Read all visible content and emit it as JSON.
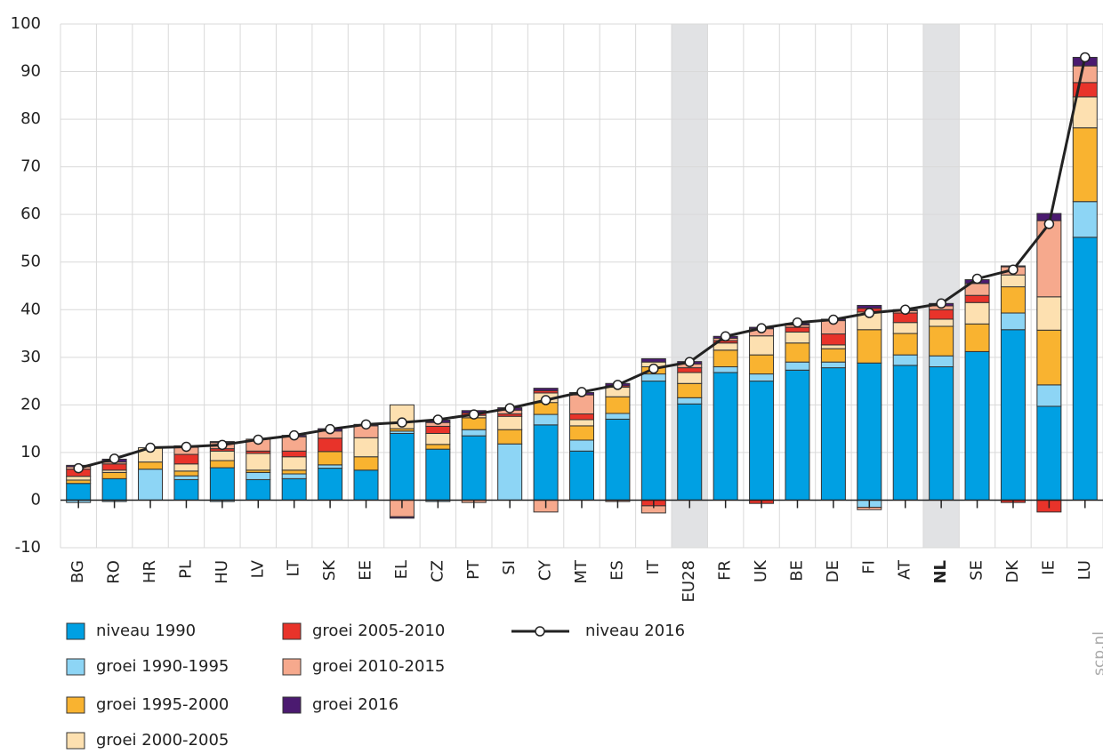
{
  "chart_data": {
    "type": "stacked-bar-line",
    "categories": [
      "BG",
      "RO",
      "HR",
      "PL",
      "HU",
      "LV",
      "LT",
      "SK",
      "EE",
      "EL",
      "CZ",
      "PT",
      "SI",
      "CY",
      "MT",
      "ES",
      "IT",
      "EU28",
      "FR",
      "UK",
      "BE",
      "DE",
      "FI",
      "AT",
      "NL",
      "SE",
      "DK",
      "IE",
      "LU"
    ],
    "highlighted": [
      17,
      24
    ],
    "ylim": [
      -10,
      100
    ],
    "yticks": [
      -10,
      0,
      10,
      20,
      30,
      40,
      50,
      60,
      70,
      80,
      90,
      100
    ],
    "grid": true,
    "series": [
      {
        "name": "niveau 1990",
        "color": "#00a0e3",
        "values": [
          3.5,
          4.5,
          0,
          4.3,
          6.8,
          4.3,
          4.5,
          6.7,
          6.3,
          14,
          10.7,
          13.5,
          0,
          15.8,
          10.3,
          17,
          25,
          20.2,
          26.8,
          25,
          27.3,
          27.8,
          28.8,
          28.3,
          28,
          31.2,
          35.8,
          19.7,
          55.2
        ]
      },
      {
        "name": "groei 1990-1995",
        "color": "#8dd5f5",
        "values": [
          -0.5,
          -0.3,
          6.5,
          0.8,
          -0.3,
          1.5,
          1,
          0.7,
          0,
          0.5,
          -0.3,
          1.3,
          11.8,
          2.2,
          2.3,
          1.2,
          1.5,
          1.3,
          1.2,
          1.5,
          1.7,
          1.2,
          -1.5,
          2.2,
          2.3,
          0,
          3.5,
          4.5,
          7.5
        ]
      },
      {
        "name": "groei 1995-2000",
        "color": "#f9b330",
        "values": [
          0.7,
          1.3,
          1.5,
          1,
          1.5,
          0.5,
          0.8,
          2.8,
          2.8,
          0.5,
          1,
          2.5,
          3,
          2.5,
          3,
          3.5,
          1.5,
          3,
          3.5,
          4,
          4,
          2.8,
          7,
          4.5,
          6.2,
          5.8,
          5.5,
          11.5,
          15.5
        ]
      },
      {
        "name": "groei 2000-2005",
        "color": "#fde0b0",
        "values": [
          0.8,
          0.5,
          3,
          1.5,
          2,
          3.5,
          2.8,
          0,
          4,
          5,
          2.3,
          0.5,
          2.8,
          2,
          1.3,
          2,
          1,
          2.3,
          1.5,
          4,
          2.3,
          0.8,
          3.7,
          2.3,
          1.5,
          4.5,
          2.5,
          7,
          6.5
        ]
      },
      {
        "name": "groei 2005-2010",
        "color": "#e8332a",
        "values": [
          1.5,
          1.3,
          0,
          2,
          0.5,
          0.5,
          1.2,
          2.8,
          0,
          0,
          1.5,
          0.5,
          0.5,
          0.5,
          1.2,
          0.3,
          -1.2,
          1,
          0.5,
          -0.7,
          1,
          2.3,
          0.8,
          2,
          2,
          1.5,
          -0.5,
          -2.5,
          3
        ]
      },
      {
        "name": "groei 2010-2015",
        "color": "#f6a98d",
        "values": [
          0.5,
          0.4,
          0,
          1.5,
          1.3,
          2.5,
          3,
          1.5,
          2.5,
          -3.5,
          0.8,
          -0.5,
          0.8,
          -2.5,
          4,
          -0.3,
          -1.5,
          0.8,
          0.5,
          1.5,
          0.5,
          2.8,
          -0.5,
          0.5,
          0.8,
          2.5,
          1.7,
          16,
          3.5
        ]
      },
      {
        "name": "groei 2016",
        "color": "#4b1a70",
        "values": [
          0.3,
          0.6,
          0,
          0.3,
          0.2,
          0,
          0.3,
          0.5,
          0.3,
          -0.3,
          0.5,
          0.5,
          0.5,
          0.5,
          0.5,
          0.5,
          0.7,
          0.5,
          0.4,
          0.3,
          0.3,
          0.3,
          0.6,
          0.2,
          0.5,
          0.8,
          0.2,
          1.5,
          1.8
        ]
      }
    ],
    "line": {
      "name": "niveau 2016",
      "color": "#222222",
      "values": [
        6.7,
        8.7,
        11,
        11.2,
        11.6,
        12.7,
        13.6,
        14.9,
        15.9,
        16.3,
        16.9,
        18,
        19.3,
        21,
        22.7,
        24.2,
        27.6,
        29,
        34.4,
        36.1,
        37.3,
        37.9,
        39.3,
        40,
        41.3,
        46.5,
        48.4,
        58,
        93
      ]
    },
    "watermark": "scp.nl"
  }
}
